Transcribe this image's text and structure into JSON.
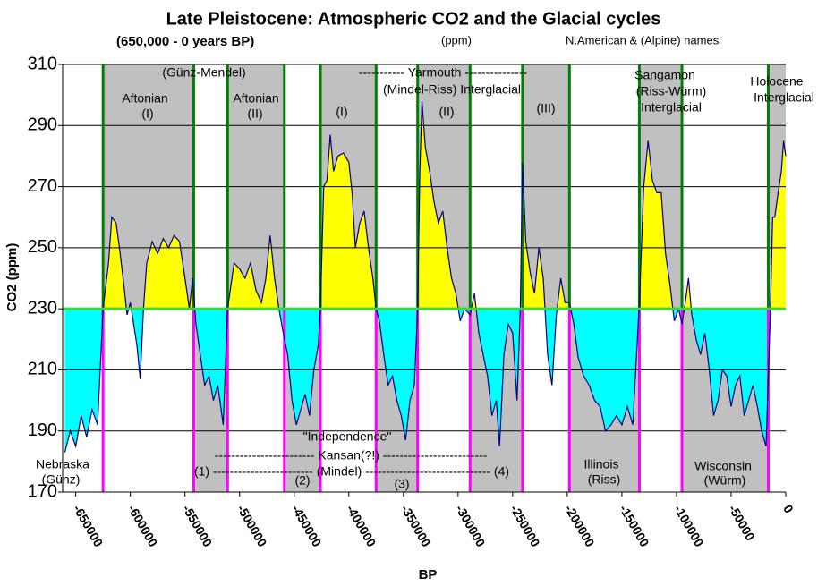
{
  "chart_data": {
    "type": "area",
    "title": "Late Pleistocene: Atmospheric CO2 and the Glacial cycles",
    "subtitle": "(650,000 - 0 years BP)",
    "unit_note": "(ppm)",
    "names_note": "N.American & (Alpine) names",
    "xlabel": "BP",
    "ylabel": "CO2 (ppm)",
    "xlim": [
      -662000,
      0
    ],
    "ylim": [
      170,
      310
    ],
    "yticks": [
      170,
      190,
      210,
      230,
      250,
      270,
      290,
      310
    ],
    "xticks": [
      -650000,
      -600000,
      -550000,
      -500000,
      -450000,
      -400000,
      -350000,
      -300000,
      -250000,
      -200000,
      -150000,
      -100000,
      -50000,
      0
    ],
    "grid": true,
    "threshold": 230,
    "line_color": "#000080",
    "above_color": "#ffff00",
    "below_color": "#00ffff",
    "band_color": "#c0c0c0",
    "interglacial_line_color": "#008000",
    "glacial_line_color": "#ff00ff",
    "threshold_color": "#33dd33",
    "interglacials": [
      [
        -625000,
        -542000
      ],
      [
        -511000,
        -459000
      ],
      [
        -426000,
        -375000
      ],
      [
        -337000,
        -289000
      ],
      [
        -241000,
        -198000
      ],
      [
        -134000,
        -95000
      ],
      [
        -16000,
        0
      ]
    ],
    "glacials": [
      [
        -542000,
        -511000
      ],
      [
        -459000,
        -426000
      ],
      [
        -375000,
        -337000
      ],
      [
        -289000,
        -241000
      ],
      [
        -198000,
        -134000
      ],
      [
        -95000,
        -16000
      ]
    ],
    "x": [
      -660000,
      -655000,
      -650000,
      -645000,
      -640000,
      -635000,
      -630000,
      -625000,
      -620000,
      -617000,
      -613000,
      -610000,
      -606000,
      -603000,
      -600000,
      -597000,
      -594000,
      -591000,
      -588000,
      -585000,
      -580000,
      -575000,
      -570000,
      -565000,
      -560000,
      -555000,
      -550000,
      -546000,
      -543000,
      -540000,
      -536000,
      -532000,
      -528000,
      -524000,
      -520000,
      -515000,
      -511000,
      -505000,
      -500000,
      -495000,
      -490000,
      -485000,
      -480000,
      -476000,
      -472000,
      -468000,
      -464000,
      -460000,
      -456000,
      -452000,
      -448000,
      -444000,
      -440000,
      -436000,
      -432000,
      -428000,
      -426000,
      -423000,
      -420000,
      -417000,
      -414000,
      -410000,
      -405000,
      -400000,
      -397000,
      -394000,
      -390000,
      -386000,
      -382000,
      -378000,
      -375000,
      -372000,
      -368000,
      -364000,
      -360000,
      -356000,
      -352000,
      -348000,
      -344000,
      -340000,
      -337000,
      -335000,
      -333000,
      -330000,
      -326000,
      -322000,
      -318000,
      -314000,
      -310000,
      -306000,
      -302000,
      -298000,
      -294000,
      -289000,
      -285000,
      -281000,
      -277000,
      -273000,
      -269000,
      -265000,
      -262000,
      -258000,
      -254000,
      -250000,
      -246000,
      -243000,
      -241000,
      -238000,
      -234000,
      -230000,
      -226000,
      -222000,
      -218000,
      -214000,
      -210000,
      -206000,
      -202000,
      -198000,
      -194000,
      -190000,
      -185000,
      -180000,
      -175000,
      -170000,
      -165000,
      -160000,
      -155000,
      -150000,
      -145000,
      -140000,
      -134000,
      -130000,
      -126000,
      -122000,
      -118000,
      -114000,
      -110000,
      -106000,
      -102000,
      -98000,
      -95000,
      -92000,
      -89000,
      -86000,
      -82000,
      -78000,
      -74000,
      -70000,
      -66000,
      -62000,
      -58000,
      -54000,
      -50000,
      -46000,
      -42000,
      -38000,
      -34000,
      -30000,
      -26000,
      -22000,
      -18000,
      -14000,
      -12000,
      -10000,
      -7000,
      -4000,
      -2000,
      0
    ],
    "values": [
      183,
      190,
      185,
      195,
      188,
      197,
      192,
      230,
      245,
      260,
      258,
      250,
      238,
      228,
      232,
      225,
      218,
      207,
      230,
      245,
      252,
      248,
      253,
      250,
      254,
      252,
      240,
      230,
      240,
      225,
      215,
      205,
      208,
      200,
      205,
      192,
      230,
      245,
      243,
      240,
      245,
      236,
      232,
      240,
      254,
      240,
      230,
      222,
      215,
      200,
      192,
      197,
      202,
      195,
      210,
      218,
      230,
      270,
      272,
      287,
      275,
      280,
      281,
      278,
      268,
      250,
      258,
      262,
      250,
      240,
      230,
      226,
      215,
      205,
      208,
      200,
      195,
      187,
      200,
      205,
      230,
      275,
      298,
      283,
      275,
      265,
      258,
      262,
      250,
      240,
      235,
      226,
      230,
      228,
      235,
      222,
      215,
      208,
      195,
      200,
      185,
      215,
      225,
      222,
      200,
      230,
      278,
      252,
      242,
      235,
      250,
      240,
      215,
      205,
      228,
      240,
      232,
      232,
      225,
      214,
      208,
      205,
      200,
      198,
      190,
      192,
      195,
      192,
      198,
      192,
      232,
      270,
      285,
      272,
      268,
      268,
      248,
      238,
      226,
      230,
      225,
      232,
      240,
      228,
      220,
      215,
      222,
      210,
      195,
      200,
      210,
      208,
      198,
      205,
      208,
      195,
      200,
      205,
      198,
      190,
      185,
      230,
      260,
      260,
      268,
      275,
      285,
      280
    ],
    "annotations": [
      "(Günz-Mendel)",
      "Aftonian",
      "(I)",
      "Aftonian",
      "(II)",
      "----------- Yarmouth ---------------",
      "(Mindel-Riss) Interglacial",
      "(I)",
      "(II)",
      "(III)",
      "Sangamon",
      "(Riss-Würm)",
      "Interglacial",
      "Holocene",
      "Interglacial",
      "\"Independence\"",
      "------------------------ Kansan(?!) -------------------------",
      "(1) ------------------------ (Mindel) ------------------------------ (4)",
      "(2)",
      "(3)",
      "Nebraska",
      "(Günz)",
      "Illinois",
      "(Riss)",
      "Wisconsin",
      "(Würm)"
    ]
  }
}
